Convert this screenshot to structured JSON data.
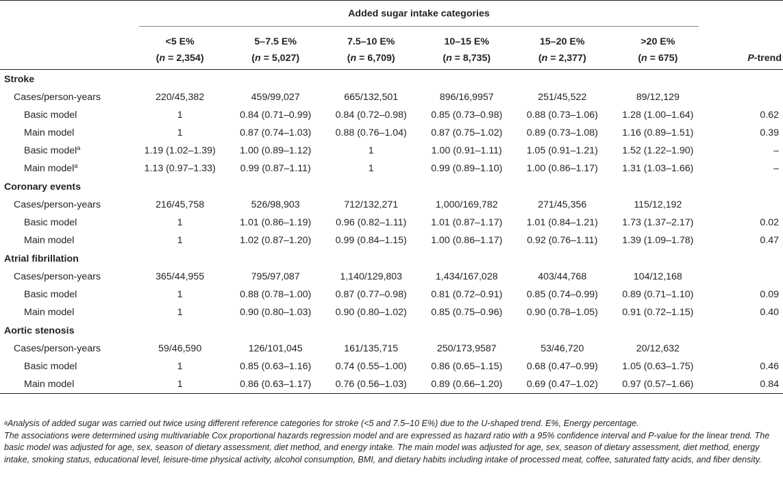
{
  "header": {
    "group_label": "Added sugar intake categories",
    "p_trend_italic": "P",
    "p_trend_rest": "-trend",
    "columns": [
      {
        "label": "<5 E%",
        "n_value": "2,354"
      },
      {
        "label": "5–7.5 E%",
        "n_value": "5,027"
      },
      {
        "label": "7.5–10 E%",
        "n_value": "6,709"
      },
      {
        "label": "10–15 E%",
        "n_value": "8,735"
      },
      {
        "label": "15–20 E%",
        "n_value": "2,377"
      },
      {
        "label": ">20 E%",
        "n_value": "675"
      }
    ],
    "n_prefix": "(",
    "n_italic": "n",
    "n_eq": " = ",
    "n_suffix": ")"
  },
  "sections": [
    {
      "title": "Stroke",
      "rows": [
        {
          "label": "Cases/person-years",
          "sup": "",
          "values": [
            "220/45,382",
            "459/99,027",
            "665/132,501",
            "896/16,9957",
            "251/45,522",
            "89/12,129"
          ],
          "p": ""
        },
        {
          "label": "Basic model",
          "sup": "",
          "values": [
            "1",
            "0.84 (0.71–0.99)",
            "0.84 (0.72–0.98)",
            "0.85 (0.73–0.98)",
            "0.88 (0.73–1.06)",
            "1.28 (1.00–1.64)"
          ],
          "p": "0.62"
        },
        {
          "label": "Main model",
          "sup": "",
          "values": [
            "1",
            "0.87 (0.74–1.03)",
            "0.88 (0.76–1.04)",
            "0.87 (0.75–1.02)",
            "0.89 (0.73–1.08)",
            "1.16 (0.89–1.51)"
          ],
          "p": "0.39"
        },
        {
          "label": "Basic model",
          "sup": "a",
          "values": [
            "1.19 (1.02–1.39)",
            "1.00 (0.89–1.12)",
            "1",
            "1.00 (0.91–1.11)",
            "1.05 (0.91–1.21)",
            "1.52 (1.22–1.90)"
          ],
          "p": "–"
        },
        {
          "label": "Main model",
          "sup": "a",
          "values": [
            "1.13 (0.97–1.33)",
            "0.99 (0.87–1.11)",
            "1",
            "0.99 (0.89–1.10)",
            "1.00 (0.86–1.17)",
            "1.31 (1.03–1.66)"
          ],
          "p": "–"
        }
      ]
    },
    {
      "title": "Coronary events",
      "rows": [
        {
          "label": "Cases/person-years",
          "sup": "",
          "values": [
            "216/45,758",
            "526/98,903",
            "712/132,271",
            "1,000/169,782",
            "271/45,356",
            "115/12,192"
          ],
          "p": ""
        },
        {
          "label": "Basic model",
          "sup": "",
          "values": [
            "1",
            "1.01 (0.86–1.19)",
            "0.96 (0.82–1.11)",
            "1.01 (0.87–1.17)",
            "1.01 (0.84–1.21)",
            "1.73 (1.37–2.17)"
          ],
          "p": "0.02"
        },
        {
          "label": "Main model",
          "sup": "",
          "values": [
            "1",
            "1.02 (0.87–1.20)",
            "0.99 (0.84–1.15)",
            "1.00 (0.86–1.17)",
            "0.92 (0.76–1.11)",
            "1.39 (1.09–1.78)"
          ],
          "p": "0.47"
        }
      ]
    },
    {
      "title": "Atrial fibrillation",
      "rows": [
        {
          "label": "Cases/person-years",
          "sup": "",
          "values": [
            "365/44,955",
            "795/97,087",
            "1,140/129,803",
            "1,434/167,028",
            "403/44,768",
            "104/12,168"
          ],
          "p": ""
        },
        {
          "label": "Basic model",
          "sup": "",
          "values": [
            "1",
            "0.88 (0.78–1.00)",
            "0.87 (0.77–0.98)",
            "0.81 (0.72–0.91)",
            "0.85 (0.74–0.99)",
            "0.89 (0.71–1.10)"
          ],
          "p": "0.09"
        },
        {
          "label": "Main model",
          "sup": "",
          "values": [
            "1",
            "0.90 (0.80–1.03)",
            "0.90 (0.80–1.02)",
            "0.85 (0.75–0.96)",
            "0.90 (0.78–1.05)",
            "0.91 (0.72–1.15)"
          ],
          "p": "0.40"
        }
      ]
    },
    {
      "title": "Aortic stenosis",
      "rows": [
        {
          "label": "Cases/person-years",
          "sup": "",
          "values": [
            "59/46,590",
            "126/101,045",
            "161/135,715",
            "250/173,9587",
            "53/46,720",
            "20/12,632"
          ],
          "p": ""
        },
        {
          "label": "Basic model",
          "sup": "",
          "values": [
            "1",
            "0.85 (0.63–1.16)",
            "0.74 (0.55–1.00)",
            "0.86 (0.65–1.15)",
            "0.68 (0.47–0.99)",
            "1.05 (0.63–1.75)"
          ],
          "p": "0.46"
        },
        {
          "label": "Main model",
          "sup": "",
          "values": [
            "1",
            "0.86 (0.63–1.17)",
            "0.76 (0.56–1.03)",
            "0.89 (0.66–1.20)",
            "0.69 (0.47–1.02)",
            "0.97 (0.57–1.66)"
          ],
          "p": "0.84"
        }
      ]
    }
  ],
  "footnotes": {
    "a_marker": "a",
    "a_text": "Analysis of added sugar was carried out twice using different reference categories for stroke (<5 and 7.5–10 E%) due to the U-shaped trend. E%, Energy percentage.",
    "note": "The associations were determined using multivariable Cox proportional hazards regression model and are expressed as hazard ratio with a 95% confidence interval and P-value for the linear trend. The basic model was adjusted for age, sex, season of dietary assessment, diet method, and energy intake. The main model was adjusted for age, sex, season of dietary assessment, diet method, energy intake, smoking status, educational level, leisure-time physical activity, alcohol consumption, BMI, and dietary habits including intake of processed meat, coffee, saturated fatty acids, and fiber density."
  }
}
